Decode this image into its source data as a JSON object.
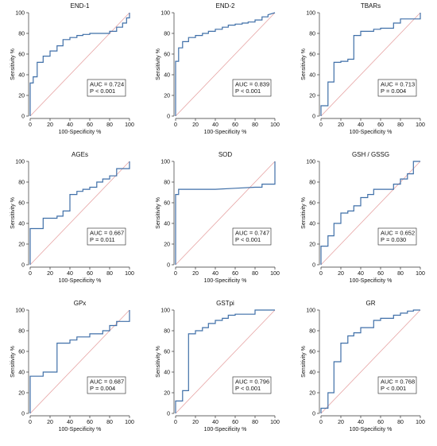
{
  "chart_data": [
    {
      "type": "line",
      "title": "END-1",
      "xlabel": "100-Specificity %",
      "ylabel": "Sensitivity %",
      "xlim": [
        0,
        100
      ],
      "ylim": [
        0,
        100
      ],
      "xticks": [
        "0",
        "20",
        "40",
        "60",
        "80",
        "100"
      ],
      "yticks": [
        "0",
        "20",
        "40",
        "60",
        "80",
        "100"
      ],
      "grid": false,
      "reference_line": true,
      "auc_text": "AUC = 0.724",
      "p_text": "P < 0.001",
      "x": [
        0,
        0,
        3,
        3,
        7,
        7,
        13,
        13,
        20,
        20,
        27,
        27,
        33,
        33,
        40,
        40,
        47,
        47,
        53,
        53,
        60,
        60,
        67,
        67,
        73,
        73,
        80,
        80,
        87,
        87,
        93,
        93,
        97,
        97,
        100,
        100
      ],
      "y": [
        0,
        32,
        32,
        38,
        38,
        52,
        52,
        58,
        58,
        63,
        63,
        68,
        68,
        74,
        74,
        76,
        76,
        78,
        78,
        79,
        79,
        80,
        80,
        80,
        80,
        80,
        80,
        82,
        82,
        86,
        86,
        90,
        90,
        95,
        95,
        100
      ]
    },
    {
      "type": "line",
      "title": "END-2",
      "xlabel": "100-Specificity %",
      "ylabel": "Sensitivity %",
      "xlim": [
        0,
        100
      ],
      "ylim": [
        0,
        100
      ],
      "xticks": [
        "0",
        "20",
        "40",
        "60",
        "80",
        "100"
      ],
      "yticks": [
        "0",
        "20",
        "40",
        "60",
        "80",
        "100"
      ],
      "grid": false,
      "reference_line": true,
      "auc_text": "AUC = 0.839",
      "p_text": "P < 0.001",
      "x": [
        0,
        0,
        3,
        3,
        7,
        7,
        13,
        13,
        20,
        20,
        27,
        27,
        33,
        33,
        40,
        40,
        47,
        47,
        53,
        53,
        60,
        60,
        67,
        67,
        73,
        73,
        80,
        80,
        87,
        87,
        93,
        93,
        100
      ],
      "y": [
        0,
        53,
        53,
        66,
        66,
        72,
        72,
        76,
        76,
        78,
        78,
        80,
        80,
        82,
        82,
        84,
        84,
        86,
        86,
        88,
        88,
        89,
        89,
        90,
        90,
        91,
        91,
        93,
        93,
        96,
        96,
        98,
        100
      ]
    },
    {
      "type": "line",
      "title": "TBARs",
      "xlabel": "100-Specificity %",
      "ylabel": "Sensitivity %",
      "xlim": [
        0,
        100
      ],
      "ylim": [
        0,
        100
      ],
      "xticks": [
        "0",
        "20",
        "40",
        "60",
        "80",
        "100"
      ],
      "yticks": [
        "0",
        "20",
        "40",
        "60",
        "80",
        "100"
      ],
      "grid": false,
      "reference_line": true,
      "auc_text": "AUC = 0.713",
      "p_text": "P = 0.004",
      "x": [
        0,
        0,
        7,
        7,
        13,
        13,
        20,
        20,
        27,
        27,
        33,
        33,
        40,
        40,
        53,
        53,
        60,
        60,
        73,
        73,
        80,
        80,
        100,
        100
      ],
      "y": [
        0,
        10,
        10,
        33,
        33,
        52,
        52,
        53,
        53,
        55,
        55,
        78,
        78,
        82,
        82,
        84,
        84,
        85,
        85,
        90,
        90,
        94,
        94,
        100
      ]
    },
    {
      "type": "line",
      "title": "AGEs",
      "xlabel": "100-Specificity %",
      "ylabel": "Sensitivity %",
      "xlim": [
        0,
        100
      ],
      "ylim": [
        0,
        100
      ],
      "xticks": [
        "0",
        "20",
        "40",
        "60",
        "80",
        "100"
      ],
      "yticks": [
        "0",
        "20",
        "40",
        "60",
        "80",
        "100"
      ],
      "grid": false,
      "reference_line": true,
      "auc_text": "AUC = 0.667",
      "p_text": "P = 0.011",
      "x": [
        0,
        0,
        13,
        13,
        27,
        27,
        33,
        33,
        40,
        40,
        47,
        47,
        53,
        53,
        60,
        60,
        67,
        67,
        73,
        73,
        80,
        80,
        87,
        87,
        100,
        100
      ],
      "y": [
        0,
        35,
        35,
        45,
        45,
        47,
        47,
        52,
        52,
        68,
        68,
        71,
        71,
        73,
        73,
        75,
        75,
        80,
        80,
        83,
        83,
        86,
        86,
        93,
        93,
        100
      ]
    },
    {
      "type": "line",
      "title": "SOD",
      "xlabel": "100-Specificity %",
      "ylabel": "Sensitivity %",
      "xlim": [
        0,
        100
      ],
      "ylim": [
        0,
        100
      ],
      "xticks": [
        "0",
        "20",
        "40",
        "60",
        "80",
        "100"
      ],
      "yticks": [
        "0",
        "20",
        "40",
        "60",
        "80",
        "100"
      ],
      "grid": false,
      "reference_line": true,
      "auc_text": "AUC = 0.747",
      "p_text": "P < 0.001",
      "x": [
        0,
        0,
        3,
        3,
        10,
        40,
        60,
        80,
        87,
        87,
        100,
        100
      ],
      "y": [
        0,
        68,
        68,
        73,
        73,
        73,
        74,
        75,
        75,
        78,
        78,
        100
      ]
    },
    {
      "type": "line",
      "title": "GSH / GSSG",
      "xlabel": "100-Specificity %",
      "ylabel": "Sensitivity %",
      "xlim": [
        0,
        100
      ],
      "ylim": [
        0,
        100
      ],
      "xticks": [
        "0",
        "20",
        "40",
        "60",
        "80",
        "100"
      ],
      "yticks": [
        "0",
        "20",
        "40",
        "60",
        "80",
        "100"
      ],
      "grid": false,
      "reference_line": true,
      "auc_text": "AUC = 0.652",
      "p_text": "P = 0.030",
      "x": [
        0,
        0,
        7,
        7,
        13,
        13,
        20,
        20,
        27,
        27,
        33,
        33,
        40,
        40,
        47,
        47,
        53,
        53,
        73,
        73,
        80,
        80,
        87,
        87,
        93,
        93,
        100
      ],
      "y": [
        0,
        18,
        18,
        28,
        28,
        40,
        40,
        50,
        50,
        52,
        52,
        57,
        57,
        65,
        65,
        68,
        68,
        73,
        73,
        78,
        78,
        83,
        83,
        88,
        88,
        100,
        100
      ]
    },
    {
      "type": "line",
      "title": "GPx",
      "xlabel": "100-Specificity %",
      "ylabel": "Sensitivity %",
      "xlim": [
        0,
        100
      ],
      "ylim": [
        0,
        100
      ],
      "xticks": [
        "0",
        "20",
        "40",
        "60",
        "80",
        "100"
      ],
      "yticks": [
        "0",
        "20",
        "40",
        "60",
        "80",
        "100"
      ],
      "grid": false,
      "reference_line": true,
      "auc_text": "AUC = 0.687",
      "p_text": "P = 0.004",
      "x": [
        0,
        0,
        13,
        13,
        27,
        27,
        40,
        40,
        47,
        47,
        60,
        60,
        73,
        73,
        80,
        80,
        87,
        87,
        100,
        100
      ],
      "y": [
        0,
        36,
        36,
        40,
        40,
        68,
        68,
        71,
        71,
        74,
        74,
        77,
        77,
        80,
        80,
        85,
        85,
        89,
        89,
        100
      ]
    },
    {
      "type": "line",
      "title": "GSTpi",
      "xlabel": "100-Specificity %",
      "ylabel": "Sensitivity %",
      "xlim": [
        0,
        100
      ],
      "ylim": [
        0,
        100
      ],
      "xticks": [
        "0",
        "20",
        "40",
        "60",
        "80",
        "100"
      ],
      "yticks": [
        "0",
        "20",
        "40",
        "60",
        "80",
        "100"
      ],
      "grid": false,
      "reference_line": true,
      "auc_text": "AUC = 0.796",
      "p_text": "P < 0.001",
      "x": [
        0,
        0,
        7,
        7,
        13,
        13,
        20,
        20,
        27,
        27,
        33,
        33,
        40,
        40,
        47,
        47,
        53,
        53,
        60,
        60,
        80,
        80,
        100
      ],
      "y": [
        0,
        12,
        12,
        22,
        22,
        77,
        77,
        80,
        80,
        83,
        83,
        87,
        87,
        90,
        90,
        92,
        92,
        95,
        95,
        96,
        96,
        100,
        100
      ]
    },
    {
      "type": "line",
      "title": "GR",
      "xlabel": "100-Specificity %",
      "ylabel": "Sensitivity %",
      "xlim": [
        0,
        100
      ],
      "ylim": [
        0,
        100
      ],
      "xticks": [
        "0",
        "20",
        "40",
        "60",
        "80",
        "100"
      ],
      "yticks": [
        "0",
        "20",
        "40",
        "60",
        "80",
        "100"
      ],
      "grid": false,
      "reference_line": true,
      "auc_text": "AUC = 0.768",
      "p_text": "P < 0.001",
      "x": [
        0,
        0,
        7,
        7,
        13,
        13,
        20,
        20,
        27,
        27,
        33,
        33,
        40,
        40,
        53,
        53,
        60,
        60,
        73,
        73,
        80,
        80,
        87,
        87,
        93,
        93,
        100
      ],
      "y": [
        0,
        5,
        5,
        20,
        20,
        50,
        50,
        68,
        68,
        75,
        75,
        78,
        78,
        83,
        83,
        90,
        90,
        92,
        92,
        95,
        95,
        97,
        97,
        99,
        99,
        100,
        100
      ]
    }
  ],
  "colors": {
    "curve": "#3f6fa8",
    "reference": "#e6a3a3",
    "axis": "#333333"
  }
}
